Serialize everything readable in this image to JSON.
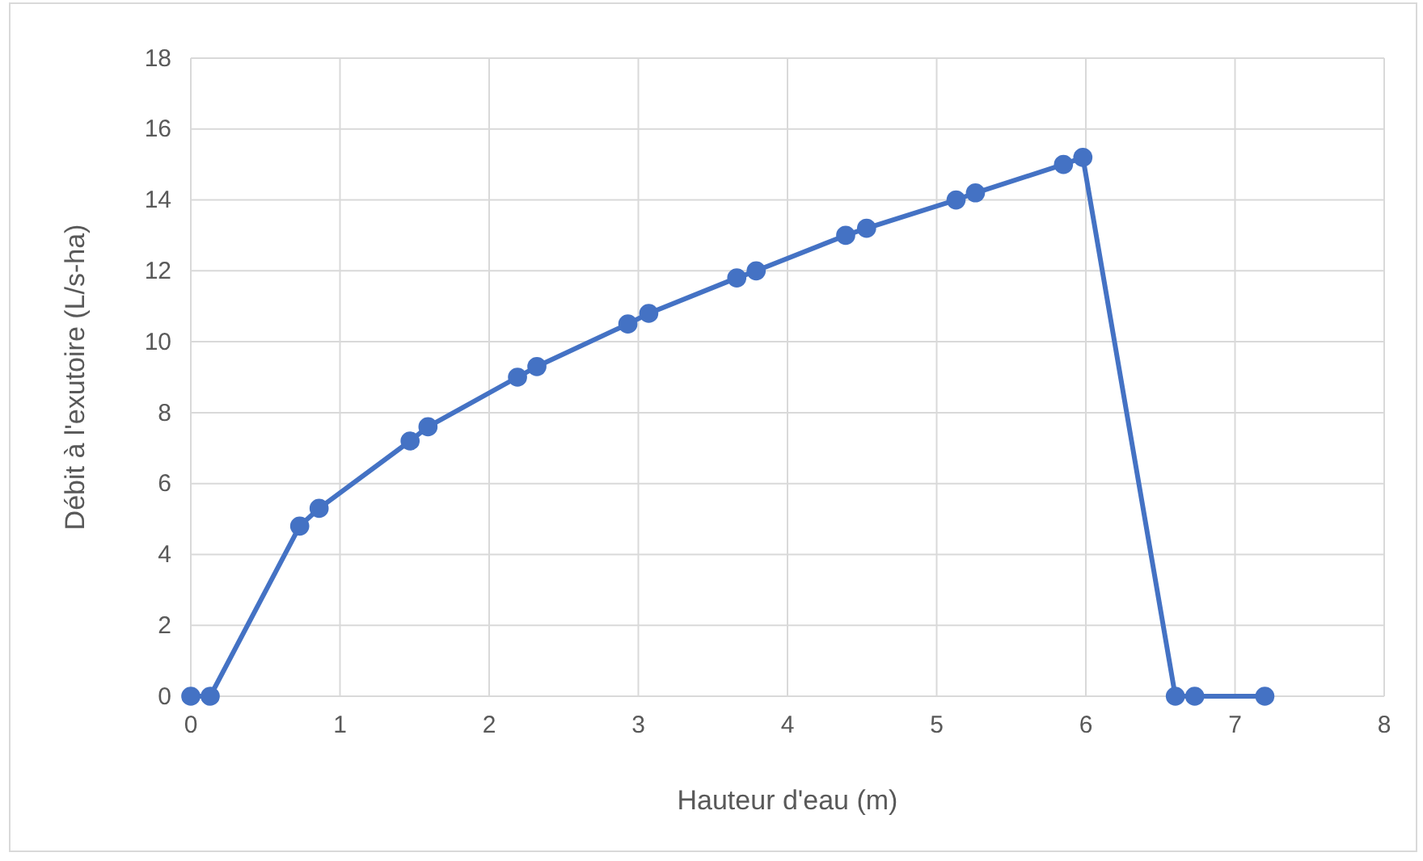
{
  "chart_data": {
    "type": "line",
    "xlabel": "Hauteur d'eau (m)",
    "ylabel": "Débit à l'exutoire (L/s-ha)",
    "x": [
      0,
      0.13,
      0.73,
      0.86,
      1.47,
      1.59,
      2.19,
      2.32,
      2.93,
      3.07,
      3.66,
      3.79,
      4.39,
      4.53,
      5.13,
      5.26,
      5.85,
      5.98,
      6.6,
      6.73,
      7.2
    ],
    "series": [
      {
        "color": "#4472c4",
        "values": [
          0,
          0,
          4.8,
          5.3,
          7.2,
          7.6,
          9,
          9.3,
          10.5,
          10.8,
          11.8,
          12,
          13,
          13.2,
          14,
          14.2,
          15,
          15.2,
          0,
          0,
          0
        ]
      }
    ],
    "xlim": [
      0,
      8
    ],
    "xticks": [
      0,
      1,
      2,
      3,
      4,
      5,
      6,
      7,
      8
    ],
    "ylim": [
      0,
      18
    ],
    "yticks": [
      0,
      2,
      4,
      6,
      8,
      10,
      12,
      14,
      16,
      18
    ],
    "grid": true,
    "marker": "circle",
    "line_style": "solid"
  }
}
